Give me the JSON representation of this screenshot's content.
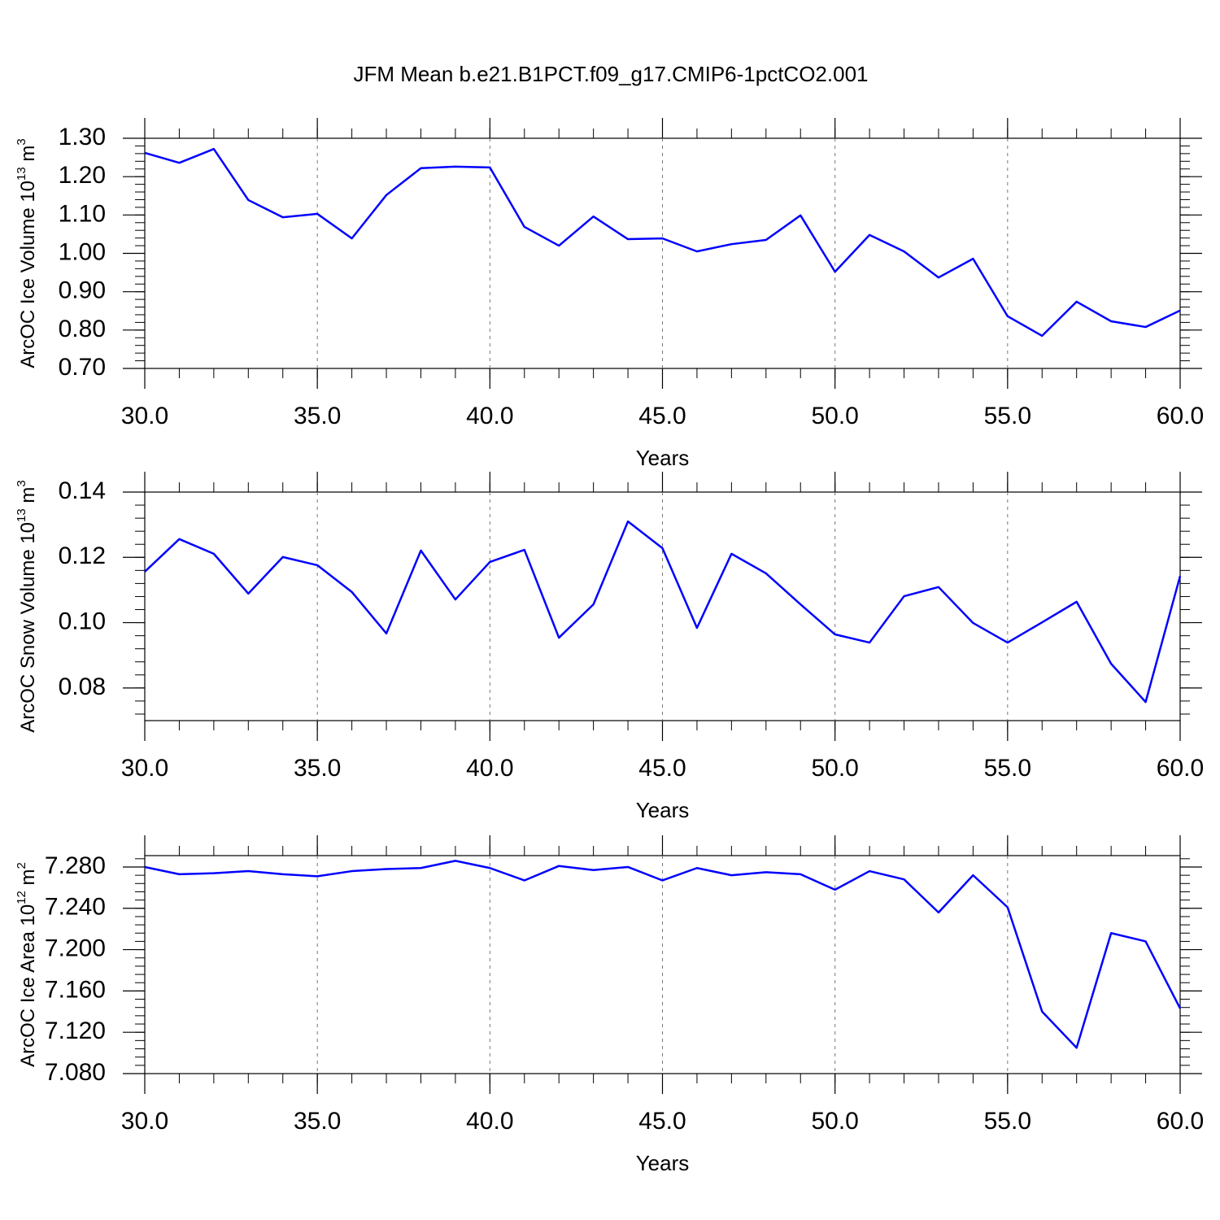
{
  "title": "JFM Mean b.e21.B1PCT.f09_g17.CMIP6-1pctCO2.001",
  "chart_data": [
    {
      "type": "line",
      "xlabel": "Years",
      "ylabel": {
        "text": "ArcOC Ice Volume 10",
        "exponent": "13",
        "unit": " m",
        "unit_exponent": "3"
      },
      "x": [
        30,
        31,
        32,
        33,
        34,
        35,
        36,
        37,
        38,
        39,
        40,
        41,
        42,
        43,
        44,
        45,
        46,
        47,
        48,
        49,
        50,
        51,
        52,
        53,
        54,
        55,
        56,
        57,
        58,
        59,
        60
      ],
      "series": [
        {
          "color": "#0000ff",
          "values": [
            1.262,
            1.236,
            1.272,
            1.139,
            1.094,
            1.103,
            1.039,
            1.152,
            1.222,
            1.226,
            1.224,
            1.069,
            1.02,
            1.096,
            1.037,
            1.039,
            1.005,
            1.024,
            1.035,
            1.099,
            0.952,
            1.048,
            1.005,
            0.937,
            0.986,
            0.836,
            0.785,
            0.874,
            0.823,
            0.808,
            0.851
          ]
        }
      ],
      "xlim": [
        30,
        60
      ],
      "xticks": [
        {
          "value": 30,
          "label": "30.0"
        },
        {
          "value": 35,
          "label": "35.0"
        },
        {
          "value": 40,
          "label": "40.0"
        },
        {
          "value": 45,
          "label": "45.0"
        },
        {
          "value": 50,
          "label": "50.0"
        },
        {
          "value": 55,
          "label": "55.0"
        },
        {
          "value": 60,
          "label": "60.0"
        }
      ],
      "ylim": [
        0.7,
        1.3
      ],
      "yticks": [
        {
          "value": 0.7,
          "label": "0.70"
        },
        {
          "value": 0.8,
          "label": "0.80"
        },
        {
          "value": 0.9,
          "label": "0.90"
        },
        {
          "value": 1.0,
          "label": "1.00"
        },
        {
          "value": 1.1,
          "label": "1.10"
        },
        {
          "value": 1.2,
          "label": "1.20"
        },
        {
          "value": 1.3,
          "label": "1.30"
        }
      ],
      "grid": "x"
    },
    {
      "type": "line",
      "xlabel": "Years",
      "ylabel": {
        "text": "ArcOC Snow Volume 10",
        "exponent": "13",
        "unit": " m",
        "unit_exponent": "3"
      },
      "x": [
        30,
        31,
        32,
        33,
        34,
        35,
        36,
        37,
        38,
        39,
        40,
        41,
        42,
        43,
        44,
        45,
        46,
        47,
        48,
        49,
        50,
        51,
        52,
        53,
        54,
        55,
        56,
        57,
        58,
        59,
        60
      ],
      "series": [
        {
          "color": "#0000ff",
          "values": [
            0.1156,
            0.1256,
            0.1211,
            0.1089,
            0.1201,
            0.1176,
            0.1094,
            0.0967,
            0.1221,
            0.1071,
            0.1186,
            0.1223,
            0.0954,
            0.1056,
            0.131,
            0.1228,
            0.0984,
            0.1211,
            0.1151,
            0.1056,
            0.0964,
            0.0939,
            0.1081,
            0.1109,
            0.0999,
            0.0939,
            0.1001,
            0.1064,
            0.0874,
            0.0757,
            0.1143
          ]
        }
      ],
      "xlim": [
        30,
        60
      ],
      "xticks": [
        {
          "value": 30,
          "label": "30.0"
        },
        {
          "value": 35,
          "label": "35.0"
        },
        {
          "value": 40,
          "label": "40.0"
        },
        {
          "value": 45,
          "label": "45.0"
        },
        {
          "value": 50,
          "label": "50.0"
        },
        {
          "value": 55,
          "label": "55.0"
        },
        {
          "value": 60,
          "label": "60.0"
        }
      ],
      "ylim": [
        0.07,
        0.14
      ],
      "yticks": [
        {
          "value": 0.08,
          "label": "0.08"
        },
        {
          "value": 0.1,
          "label": "0.10"
        },
        {
          "value": 0.12,
          "label": "0.12"
        },
        {
          "value": 0.14,
          "label": "0.14"
        }
      ],
      "grid": "x"
    },
    {
      "type": "line",
      "xlabel": "Years",
      "ylabel": {
        "text": "ArcOC Ice Area 10",
        "exponent": "12",
        "unit": " m",
        "unit_exponent": "2"
      },
      "x": [
        30,
        31,
        32,
        33,
        34,
        35,
        36,
        37,
        38,
        39,
        40,
        41,
        42,
        43,
        44,
        45,
        46,
        47,
        48,
        49,
        50,
        51,
        52,
        53,
        54,
        55,
        56,
        57,
        58,
        59,
        60
      ],
      "series": [
        {
          "color": "#0000ff",
          "values": [
            7.28,
            7.273,
            7.274,
            7.276,
            7.273,
            7.271,
            7.276,
            7.278,
            7.279,
            7.286,
            7.279,
            7.267,
            7.281,
            7.277,
            7.28,
            7.267,
            7.279,
            7.272,
            7.275,
            7.273,
            7.258,
            7.276,
            7.268,
            7.236,
            7.272,
            7.241,
            7.14,
            7.105,
            7.216,
            7.208,
            7.143
          ]
        }
      ],
      "xlim": [
        30,
        60
      ],
      "xticks": [
        {
          "value": 30,
          "label": "30.0"
        },
        {
          "value": 35,
          "label": "35.0"
        },
        {
          "value": 40,
          "label": "40.0"
        },
        {
          "value": 45,
          "label": "45.0"
        },
        {
          "value": 50,
          "label": "50.0"
        },
        {
          "value": 55,
          "label": "55.0"
        },
        {
          "value": 60,
          "label": "60.0"
        }
      ],
      "ylim": [
        7.08,
        7.291
      ],
      "yticks": [
        {
          "value": 7.08,
          "label": "7.080"
        },
        {
          "value": 7.12,
          "label": "7.120"
        },
        {
          "value": 7.16,
          "label": "7.160"
        },
        {
          "value": 7.2,
          "label": "7.200"
        },
        {
          "value": 7.24,
          "label": "7.240"
        },
        {
          "value": 7.28,
          "label": "7.280"
        }
      ],
      "grid": "x"
    }
  ]
}
